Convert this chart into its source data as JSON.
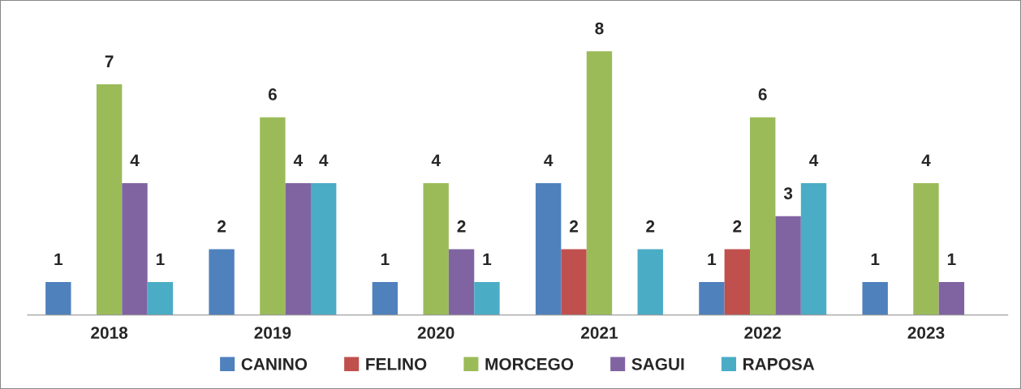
{
  "chart_data": {
    "type": "bar",
    "categories": [
      "2018",
      "2019",
      "2020",
      "2021",
      "2022",
      "2023"
    ],
    "series": [
      {
        "name": "CANINO",
        "color": "#4f81bd",
        "values": [
          1,
          2,
          1,
          4,
          1,
          1
        ]
      },
      {
        "name": "FELINO",
        "color": "#c0504d",
        "values": [
          null,
          null,
          null,
          2,
          2,
          null
        ]
      },
      {
        "name": "MORCEGO",
        "color": "#9bbb59",
        "values": [
          7,
          6,
          4,
          8,
          6,
          4
        ]
      },
      {
        "name": "SAGUI",
        "color": "#8064a2",
        "values": [
          4,
          4,
          2,
          null,
          3,
          1
        ]
      },
      {
        "name": "RAPOSA",
        "color": "#4bacc6",
        "values": [
          1,
          4,
          1,
          2,
          4,
          null
        ]
      }
    ],
    "data_labels": true,
    "legend": "bottom",
    "grid": false,
    "tick_labels": "x"
  }
}
